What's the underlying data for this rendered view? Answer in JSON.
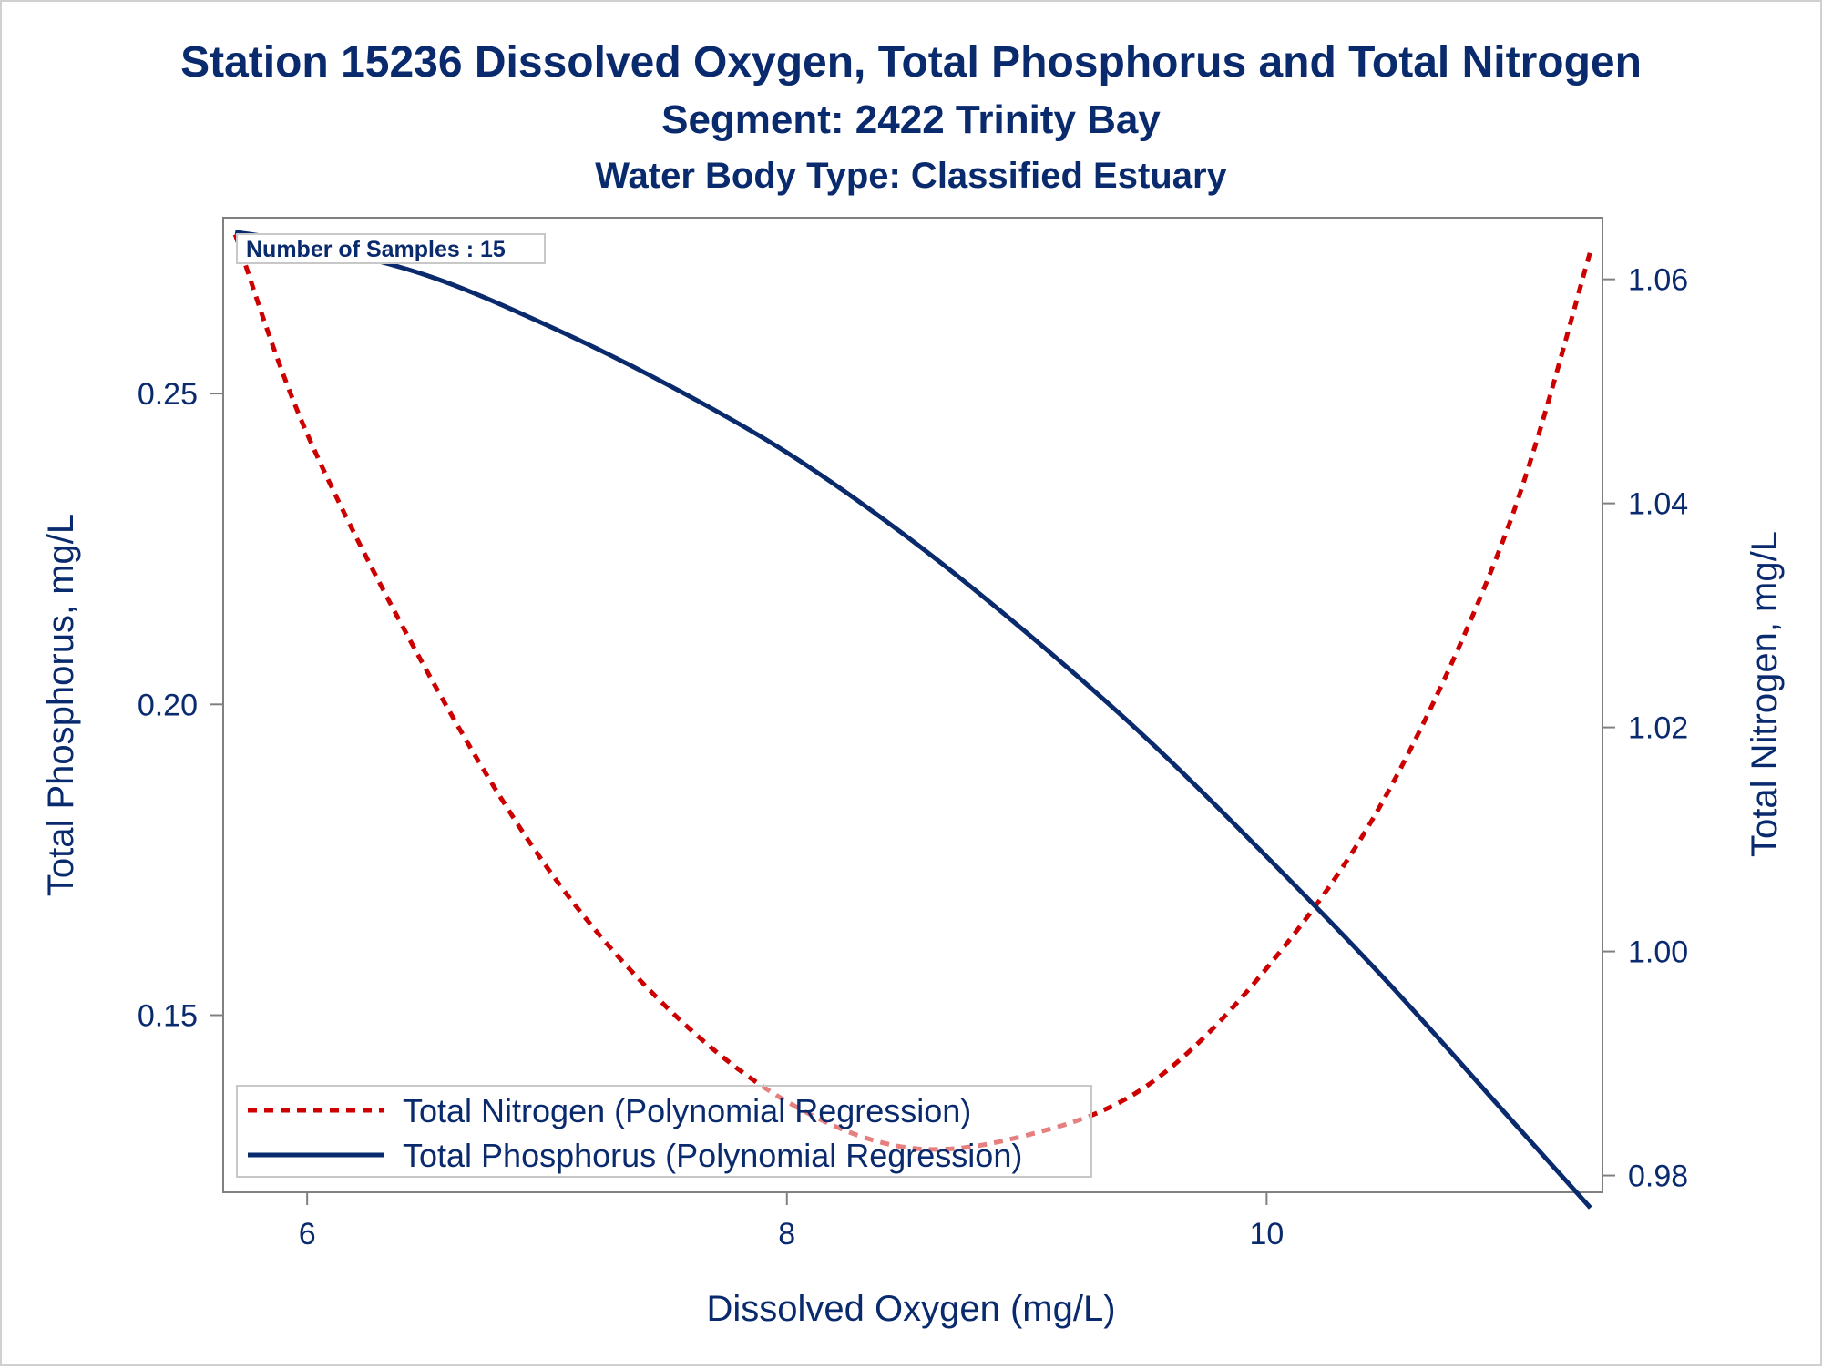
{
  "colors": {
    "title": "#0a2a6e",
    "axis": "#808080",
    "nitrogen": "#cc0000",
    "phosphorus": "#0a2a6e"
  },
  "chart_data": {
    "type": "line",
    "title": "Station 15236  Dissolved Oxygen, Total Phosphorus and Total Nitrogen",
    "subtitle": "Segment: 2422  Trinity Bay",
    "subtitle2": "Water Body Type: Classified Estuary",
    "annotation": "Number of Samples : 15",
    "xlabel": "Dissolved Oxygen (mg/L)",
    "ylabel_left": "Total Phosphorus, mg/L",
    "ylabel_right": "Total Nitrogen, mg/L",
    "xlim": [
      5.65,
      11.4
    ],
    "ylim_left": [
      0.1215,
      0.2783
    ],
    "ylim_right": [
      0.9785,
      1.0655
    ],
    "xticks": [
      6,
      8,
      10
    ],
    "xtick_labels": [
      "6",
      "8",
      "10"
    ],
    "yticks_left": [
      0.15,
      0.2,
      0.25
    ],
    "ytick_labels_left": [
      "0.15",
      "0.20",
      "0.25"
    ],
    "yticks_right": [
      0.98,
      1.0,
      1.02,
      1.04,
      1.06
    ],
    "ytick_labels_right": [
      "0.98",
      "1.00",
      "1.02",
      "1.04",
      "1.06"
    ],
    "legend_placement": "bottom-left",
    "grid": false,
    "series": [
      {
        "name": "Total Nitrogen (Polynomial Regression)",
        "axis": "right",
        "style": "dashed",
        "x": [
          5.7,
          6.0,
          6.5,
          7.0,
          7.5,
          8.0,
          8.5,
          9.0,
          9.5,
          10.0,
          10.5,
          11.0,
          11.35
        ],
        "y": [
          1.064,
          1.0462,
          1.025,
          1.0075,
          0.995,
          0.9866,
          0.9825,
          0.9836,
          0.988,
          0.9985,
          1.014,
          1.0375,
          1.0625
        ]
      },
      {
        "name": "Total Phosphorus (Polynomial Regression)",
        "axis": "left",
        "style": "solid",
        "x": [
          5.7,
          6.0,
          6.5,
          7.0,
          7.5,
          8.0,
          8.5,
          9.0,
          9.5,
          10.0,
          10.5,
          11.0,
          11.35
        ],
        "y": [
          0.276,
          0.274,
          0.269,
          0.261,
          0.2515,
          0.2405,
          0.227,
          0.2115,
          0.1945,
          0.1755,
          0.1555,
          0.134,
          0.119
        ]
      }
    ]
  }
}
